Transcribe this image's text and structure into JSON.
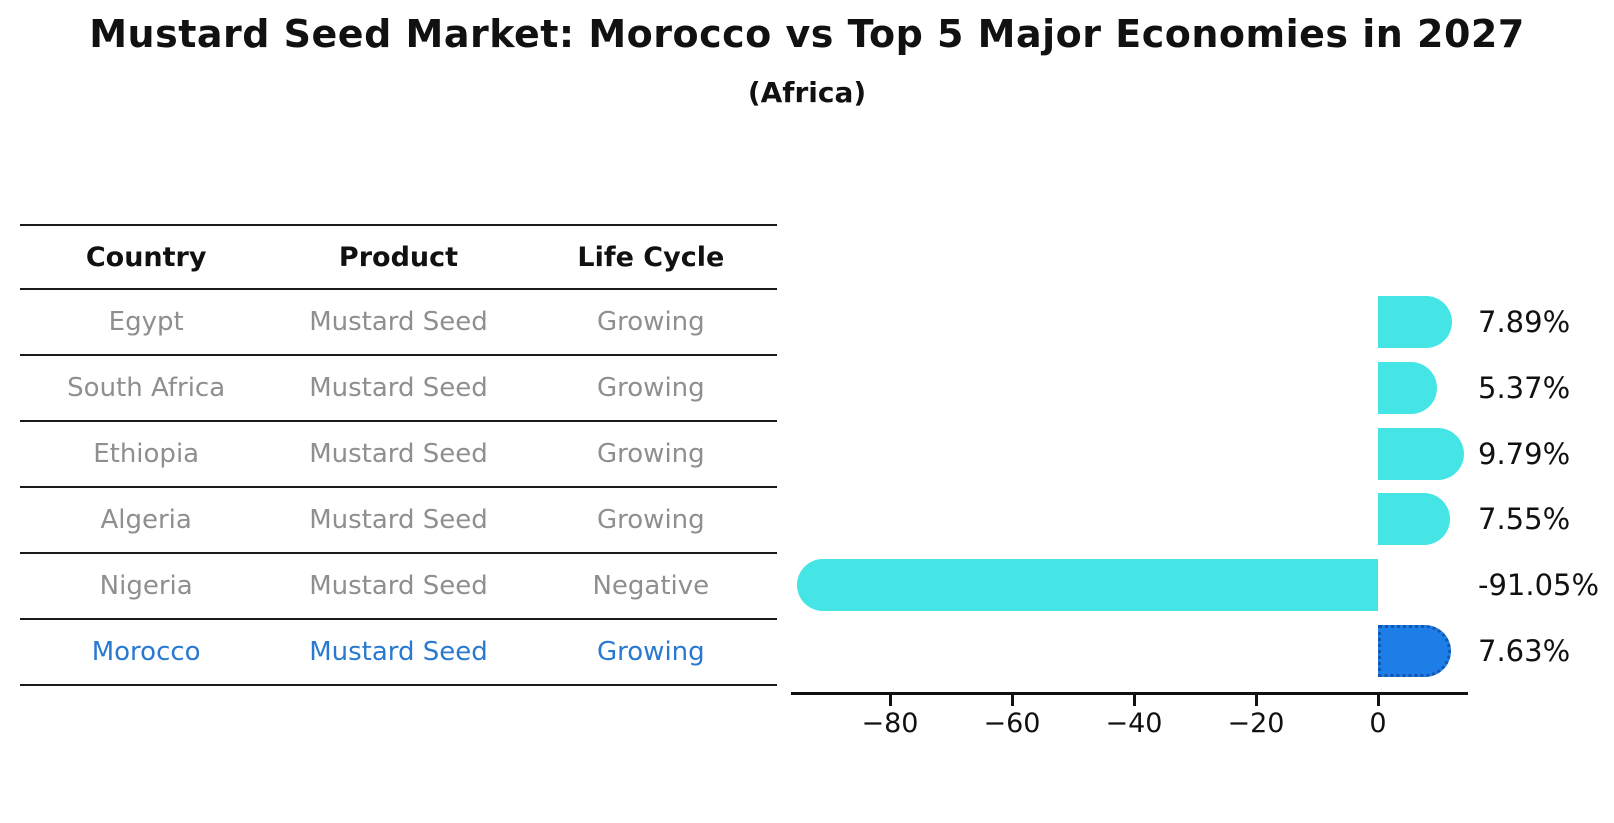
{
  "title": "Mustard Seed Market: Morocco vs Top 5 Major Economies in 2027",
  "subtitle": "(Africa)",
  "table": {
    "columns": [
      "Country",
      "Product",
      "Life Cycle"
    ],
    "rows": [
      {
        "country": "Egypt",
        "product": "Mustard Seed",
        "life_cycle": "Growing",
        "highlight": false
      },
      {
        "country": "South Africa",
        "product": "Mustard Seed",
        "life_cycle": "Growing",
        "highlight": false
      },
      {
        "country": "Ethiopia",
        "product": "Mustard Seed",
        "life_cycle": "Growing",
        "highlight": false
      },
      {
        "country": "Algeria",
        "product": "Mustard Seed",
        "life_cycle": "Growing",
        "highlight": false
      },
      {
        "country": "Nigeria",
        "product": "Mustard Seed",
        "life_cycle": "Negative",
        "highlight": false
      },
      {
        "country": "Morocco",
        "product": "Mustard Seed",
        "life_cycle": "Growing",
        "highlight": true
      }
    ]
  },
  "chart_data": {
    "type": "bar",
    "orientation": "horizontal",
    "categories": [
      "Egypt",
      "South Africa",
      "Ethiopia",
      "Algeria",
      "Nigeria",
      "Morocco"
    ],
    "values": [
      7.89,
      5.37,
      9.79,
      7.55,
      -91.05,
      7.63
    ],
    "value_labels": [
      "7.89%",
      "5.37%",
      "9.79%",
      "7.55%",
      "-91.05%",
      "7.63%"
    ],
    "highlight_index": 5,
    "x_ticks": [
      -80,
      -60,
      -40,
      -20,
      0
    ],
    "xlim": [
      -96,
      15
    ],
    "grid": false,
    "legend": "none",
    "bar_color": "#44e5e4",
    "highlight_bar_color": "#1e7ee8",
    "highlight_text_color": "#2979d0",
    "label_color": "#111111"
  }
}
